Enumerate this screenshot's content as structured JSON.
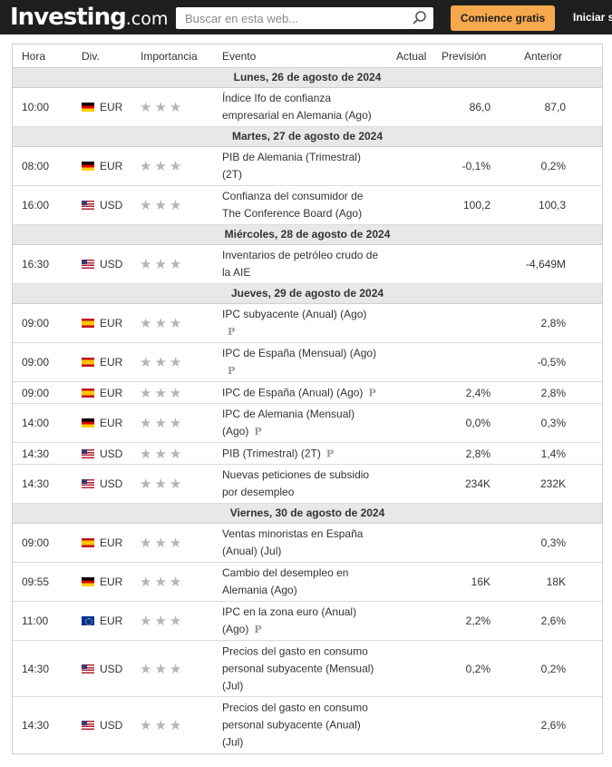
{
  "header": {
    "logo_main": "Investing",
    "logo_suffix": ".com",
    "search_placeholder": "Buscar en esta web...",
    "cta_label": "Comience gratis",
    "login_label": "Iniciar s"
  },
  "columns": {
    "time": "Hora",
    "currency": "Div.",
    "importance": "Importancia",
    "event": "Evento",
    "actual": "Actual",
    "forecast": "Previsión",
    "previous": "Anterior"
  },
  "days": [
    {
      "label": "Lunes, 26 de agosto de 2024",
      "events": [
        {
          "time": "10:00",
          "flag": "de",
          "currency": "EUR",
          "stars": "★★★",
          "lines": [
            "Índice Ifo de confianza",
            "empresarial en Alemania (Ago)"
          ],
          "prelim": "",
          "forecast": "86,0",
          "previous": "87,0"
        }
      ]
    },
    {
      "label": "Martes, 27 de agosto de 2024",
      "events": [
        {
          "time": "08:00",
          "flag": "de",
          "currency": "EUR",
          "stars": "★★★",
          "lines": [
            "PIB de Alemania (Trimestral)",
            "(2T)"
          ],
          "prelim": "",
          "forecast": "-0,1%",
          "previous": "0,2%"
        },
        {
          "time": "16:00",
          "flag": "us",
          "currency": "USD",
          "stars": "★★★",
          "lines": [
            "Confianza del consumidor de",
            "The Conference Board (Ago)"
          ],
          "prelim": "",
          "forecast": "100,2",
          "previous": "100,3"
        }
      ]
    },
    {
      "label": "Miércoles, 28 de agosto de 2024",
      "events": [
        {
          "time": "16:30",
          "flag": "us",
          "currency": "USD",
          "stars": "★★★",
          "lines": [
            "Inventarios de petróleo crudo de",
            "la AIE"
          ],
          "prelim": "",
          "forecast": "",
          "previous": "-4,649M"
        }
      ]
    },
    {
      "label": "Jueves, 29 de agosto de 2024",
      "events": [
        {
          "time": "09:00",
          "flag": "es",
          "currency": "EUR",
          "stars": "★★★",
          "lines": [
            "IPC subyacente (Anual) (Ago)",
            ""
          ],
          "prelim": "P",
          "forecast": "",
          "previous": "2,8%"
        },
        {
          "time": "09:00",
          "flag": "es",
          "currency": "EUR",
          "stars": "★★★",
          "lines": [
            "IPC de España (Mensual) (Ago)",
            ""
          ],
          "prelim": "P",
          "forecast": "",
          "previous": "-0,5%"
        },
        {
          "time": "09:00",
          "flag": "es",
          "currency": "EUR",
          "stars": "★★★",
          "lines": [
            "IPC de España (Anual) (Ago)"
          ],
          "prelim": "P",
          "forecast": "2,4%",
          "previous": "2,8%"
        },
        {
          "time": "14:00",
          "flag": "de",
          "currency": "EUR",
          "stars": "★★★",
          "lines": [
            "IPC de Alemania (Mensual)",
            "(Ago)"
          ],
          "prelim": "P",
          "forecast": "0,0%",
          "previous": "0,3%"
        },
        {
          "time": "14:30",
          "flag": "us",
          "currency": "USD",
          "stars": "★★★",
          "lines": [
            "PIB (Trimestral) (2T)"
          ],
          "prelim": "P",
          "forecast": "2,8%",
          "previous": "1,4%"
        },
        {
          "time": "14:30",
          "flag": "us",
          "currency": "USD",
          "stars": "★★★",
          "lines": [
            "Nuevas peticiones de subsidio",
            "por desempleo"
          ],
          "prelim": "",
          "forecast": "234K",
          "previous": "232K"
        }
      ]
    },
    {
      "label": "Viernes, 30 de agosto de 2024",
      "events": [
        {
          "time": "09:00",
          "flag": "es",
          "currency": "EUR",
          "stars": "★★★",
          "lines": [
            "Ventas minoristas en España",
            "(Anual) (Jul)"
          ],
          "prelim": "",
          "forecast": "",
          "previous": "0,3%"
        },
        {
          "time": "09:55",
          "flag": "de",
          "currency": "EUR",
          "stars": "★★★",
          "lines": [
            "Cambio del desempleo en",
            "Alemania (Ago)"
          ],
          "prelim": "",
          "forecast": "16K",
          "previous": "18K"
        },
        {
          "time": "11:00",
          "flag": "eu",
          "currency": "EUR",
          "stars": "★★★",
          "lines": [
            "IPC en la zona euro (Anual)",
            "(Ago)"
          ],
          "prelim": "P",
          "forecast": "2,2%",
          "previous": "2,6%"
        },
        {
          "time": "14:30",
          "flag": "us",
          "currency": "USD",
          "stars": "★★★",
          "lines": [
            "Precios del gasto en consumo",
            "personal subyacente (Mensual)",
            "(Jul)"
          ],
          "prelim": "",
          "forecast": "0,2%",
          "previous": "0,2%"
        },
        {
          "time": "14:30",
          "flag": "us",
          "currency": "USD",
          "stars": "★★★",
          "lines": [
            "Precios del gasto en consumo",
            "personal subyacente (Anual)",
            "(Jul)"
          ],
          "prelim": "",
          "forecast": "",
          "previous": "2,6%"
        }
      ]
    }
  ]
}
